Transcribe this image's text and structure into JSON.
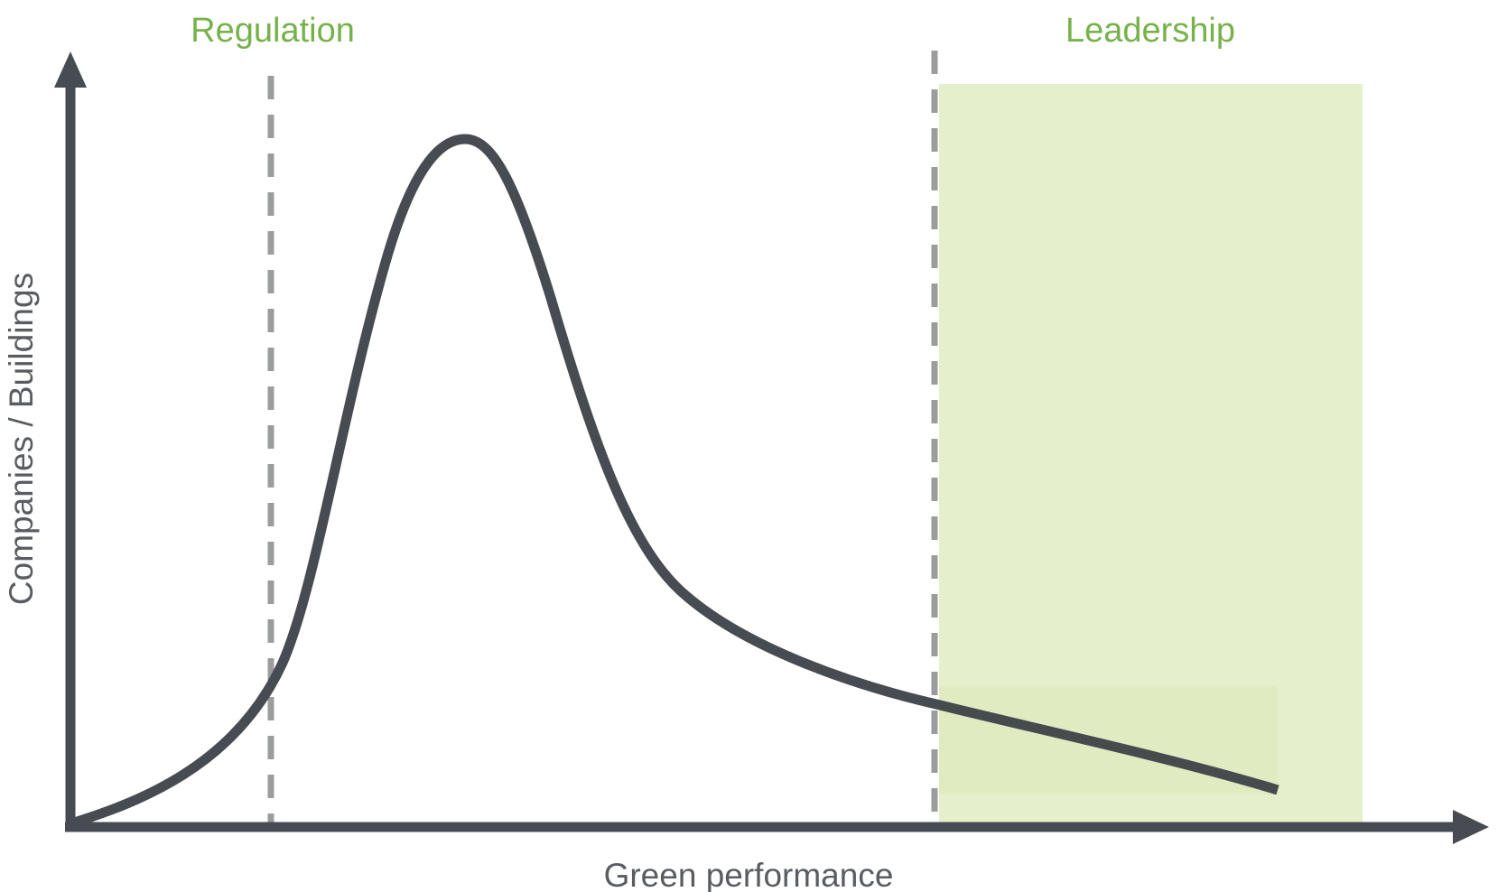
{
  "zones": {
    "regulation": "Regulation",
    "leadership": "Leadership"
  },
  "axes": {
    "y_label": "Companies / Buildings",
    "x_label": "Green performance"
  }
}
